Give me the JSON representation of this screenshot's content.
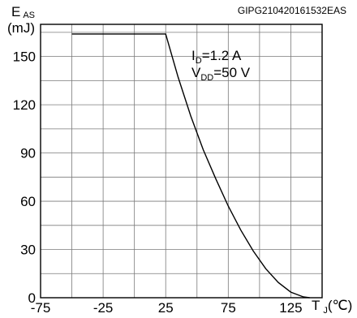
{
  "doc_code": "GIPG210420161532EAS",
  "chart_data": {
    "type": "line",
    "title": "",
    "xlabel": {
      "main": "T",
      "sub": "J",
      "unit": "(℃)"
    },
    "ylabel": {
      "main": "E",
      "sub": "AS",
      "unit": "(mJ)"
    },
    "xlim": [
      -75,
      150
    ],
    "ylim": [
      0,
      170
    ],
    "xticks": [
      -75,
      -25,
      25,
      75,
      125
    ],
    "xtick_labels": [
      "-75",
      "-25",
      "25",
      "75",
      "125"
    ],
    "yticks": [
      0,
      30,
      60,
      90,
      120,
      150
    ],
    "ytick_labels": [
      "0",
      "30",
      "60",
      "90",
      "120",
      "150"
    ],
    "x_minor_step": 25,
    "y_minor_step": 15,
    "grid": true,
    "series": [
      {
        "x": [
          -50,
          -25,
          0,
          25,
          35,
          45,
          55,
          65,
          75,
          85,
          95,
          105,
          115,
          125,
          135,
          140
        ],
        "y": [
          164,
          164,
          164,
          164,
          137,
          113,
          92,
          74,
          57,
          42,
          29,
          18,
          9.5,
          3.5,
          0.5,
          0
        ]
      }
    ],
    "annotations": [
      {
        "main": "I",
        "sub": "D",
        "rest": "=1.2 A"
      },
      {
        "main": "V",
        "sub": "DD",
        "rest": "=50 V"
      }
    ]
  }
}
